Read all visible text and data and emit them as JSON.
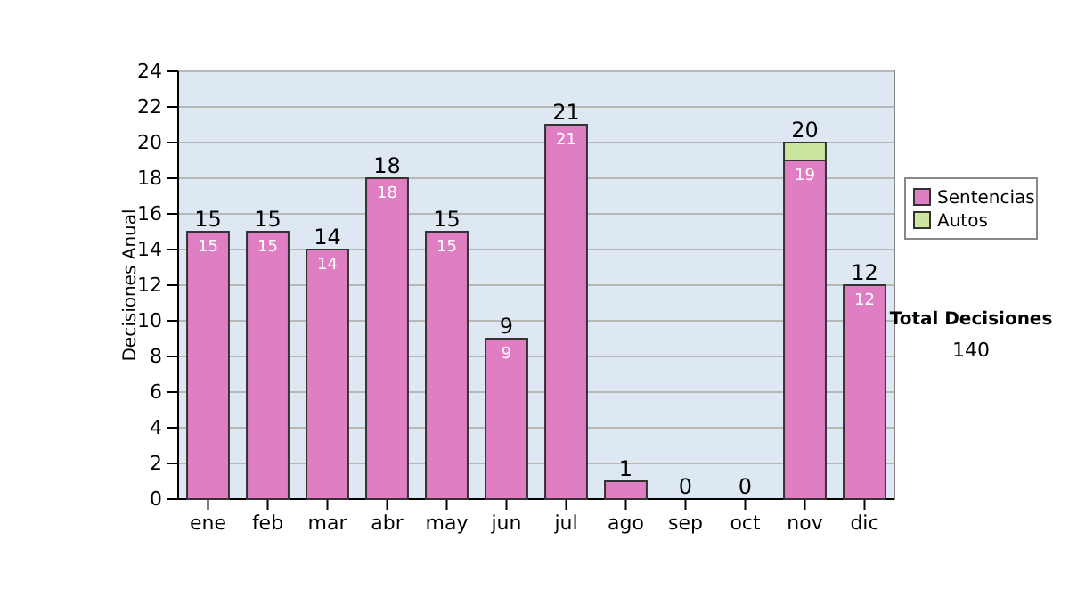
{
  "chart_data": {
    "type": "bar",
    "stacked": true,
    "ylabel": "Decisiones Anual",
    "categories": [
      "ene",
      "feb",
      "mar",
      "abr",
      "may",
      "jun",
      "jul",
      "ago",
      "sep",
      "oct",
      "nov",
      "dic"
    ],
    "series": [
      {
        "name": "Sentencias",
        "color": "#e07ec4",
        "values": [
          15,
          15,
          14,
          18,
          15,
          9,
          21,
          1,
          0,
          0,
          19,
          12
        ],
        "value_labels": [
          "15",
          "15",
          "14",
          "18",
          "15",
          "9",
          "21",
          null,
          null,
          null,
          "19",
          "12"
        ]
      },
      {
        "name": "Autos",
        "color": "#cce6a0",
        "values": [
          0,
          0,
          0,
          0,
          0,
          0,
          0,
          0,
          0,
          0,
          1,
          0
        ]
      }
    ],
    "totals": [
      "15",
      "15",
      "14",
      "18",
      "15",
      "9",
      "21",
      "1",
      "0",
      "0",
      "20",
      "12"
    ],
    "ylim": [
      0,
      24
    ],
    "yticks": [
      0,
      2,
      4,
      6,
      8,
      10,
      12,
      14,
      16,
      18,
      20,
      22,
      24
    ],
    "grid": "y",
    "legend": "right",
    "annotations": [
      "Total Decisiones",
      "140"
    ]
  }
}
